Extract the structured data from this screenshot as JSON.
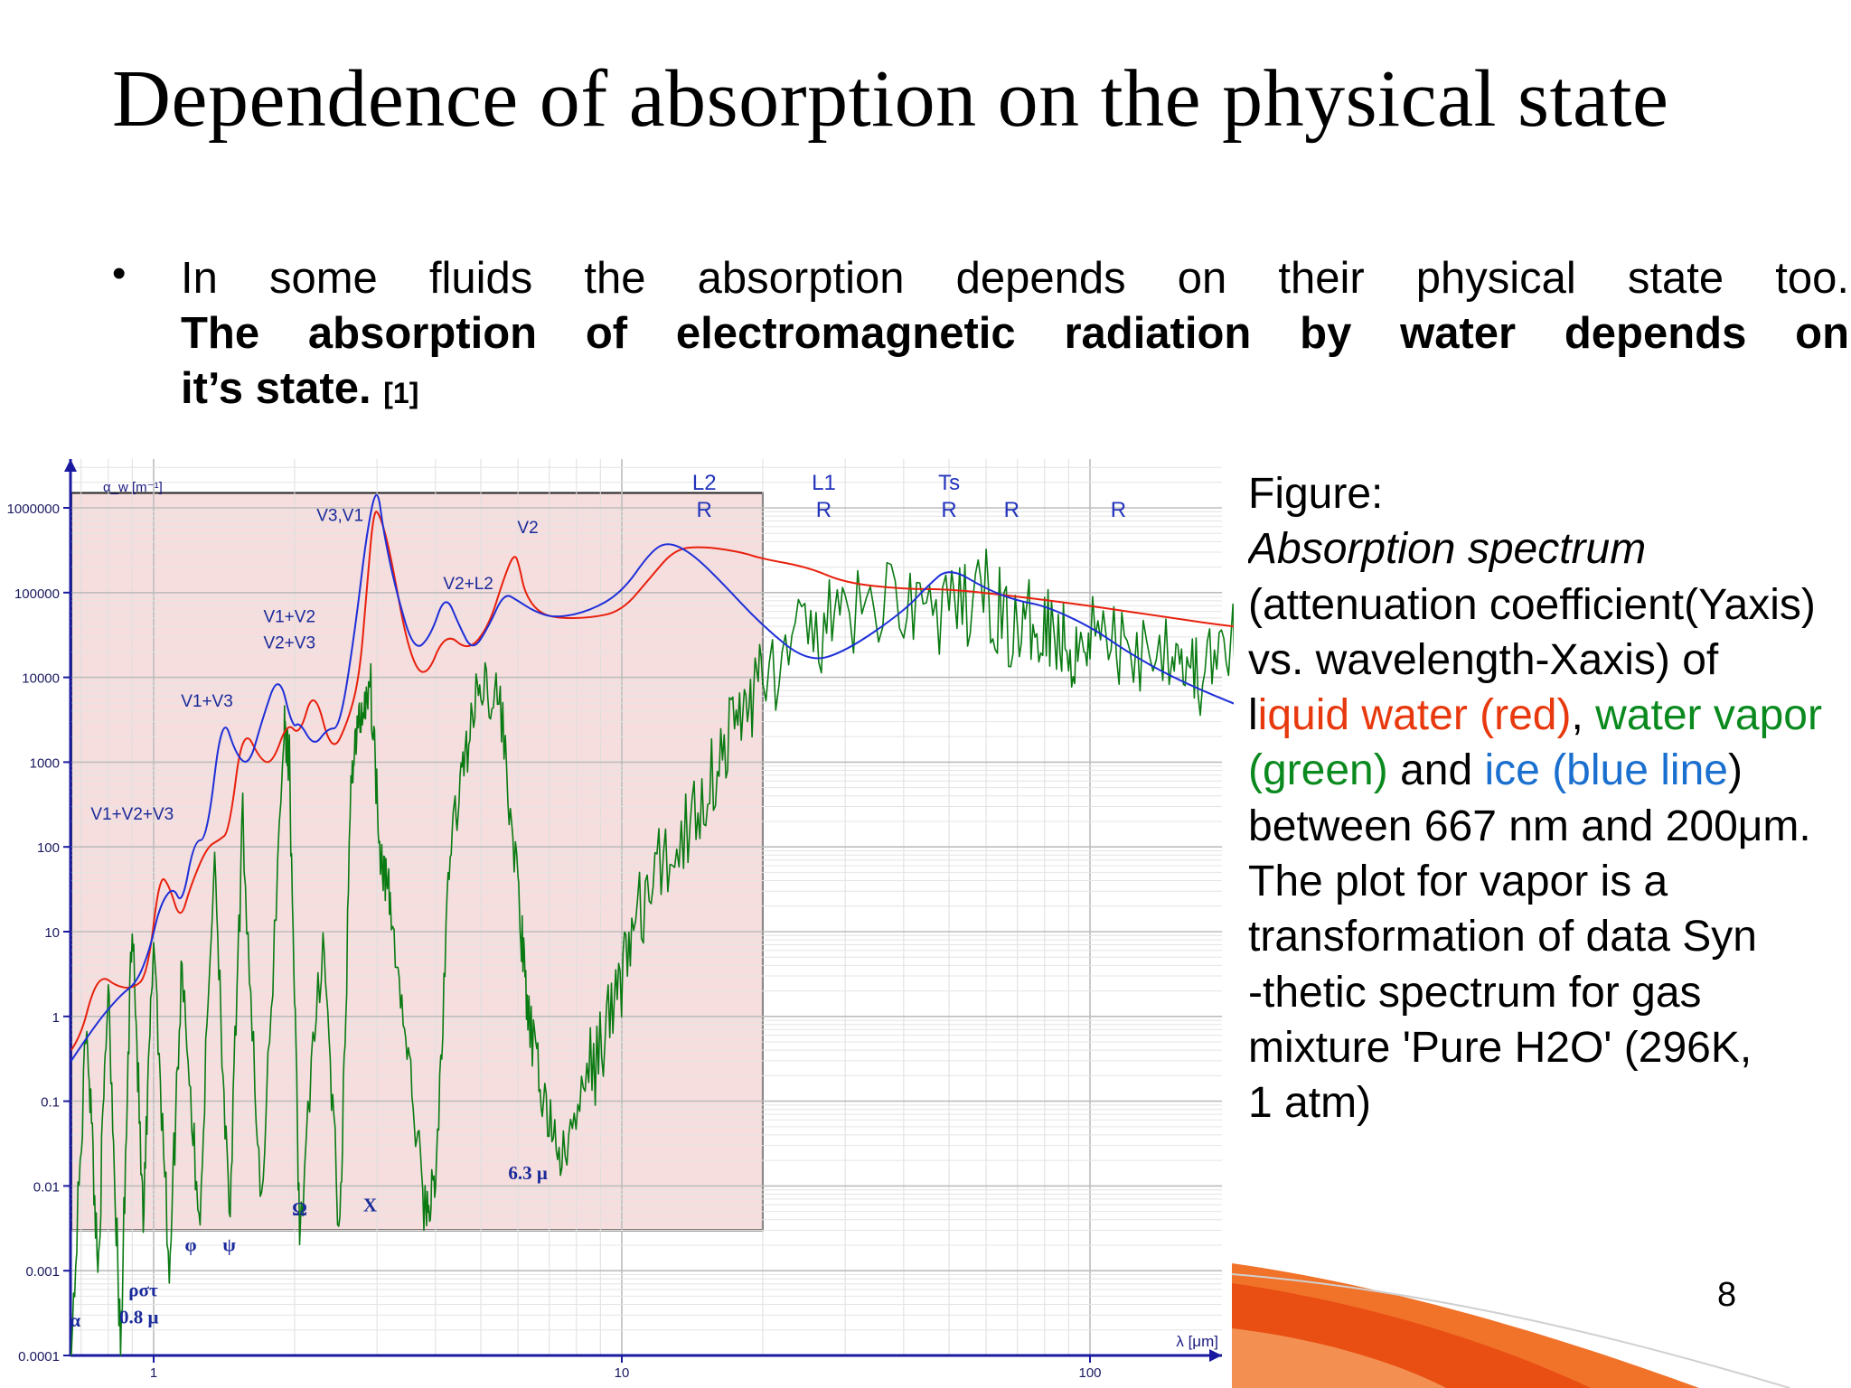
{
  "slide": {
    "title": "Dependence of absorption on the physical state",
    "bullet": {
      "line1": "In some fluids the absorption depends on their physical state too.",
      "line2": "The absorption of electromagnetic radiation by water depends on",
      "line3": "it’s state.",
      "citation": "[1]"
    },
    "page_number": "8"
  },
  "caption": {
    "line1": "Figure:",
    "line2": "Absorption spectrum",
    "line3": "(attenuation coefficient(Yaxis)",
    "line4_a": "vs. wavelength-Xaxis) of",
    "line5_a": "l",
    "line5_b": "iquid water (red)",
    "line5_c": ", ",
    "line5_d": "water vapor",
    "line6_a": "(green)",
    "line6_b": " and ",
    "line6_c": "ice (blue line",
    "line6_d": ")",
    "line7": "between 667 nm and 200μm.",
    "line8": "The plot for vapor is a",
    "line9": "transformation of data Syn",
    "line10": "-thetic spectrum for gas",
    "line11": "mixture 'Pure H2O' (296K,",
    "line12": "1 atm)"
  },
  "colors": {
    "liquid": "#e8200d",
    "vapor": "#0a7a12",
    "ice": "#1e2fd8",
    "red_text": "#e8380d",
    "green_text": "#0a8a1e",
    "blue_text": "#1a6fcf",
    "highlight": "#f6dede",
    "accent_orange": "#f06a1e"
  },
  "chart_data": {
    "type": "line",
    "x_scale": "log",
    "y_scale": "log",
    "xlim": [
      0.6,
      300
    ],
    "ylim": [
      0.0001,
      10000000
    ],
    "xlabel": "λ [μm]",
    "ylabel": "α_w [m⁻¹]",
    "x_ticks": [
      "1",
      "10",
      "100"
    ],
    "y_ticks": [
      "0.0001",
      "0.001",
      "0.01",
      "0.1",
      "1",
      "10",
      "100",
      "1000",
      "10000",
      "100000",
      "1000000"
    ],
    "highlight_box": {
      "x": [
        0.667,
        20
      ],
      "y": [
        0.003,
        1500000
      ]
    },
    "series": [
      {
        "key": "liquid",
        "x": [
          0.667,
          0.7,
          0.74,
          0.78,
          0.83,
          0.9,
          0.97,
          1.03,
          1.08,
          1.14,
          1.2,
          1.3,
          1.38,
          1.45,
          1.55,
          1.7,
          1.8,
          1.93,
          2.05,
          2.2,
          2.4,
          2.6,
          2.75,
          2.85,
          2.95,
          3.05,
          3.2,
          3.5,
          3.8,
          4.2,
          4.7,
          5.2,
          5.6,
          5.9,
          6.05,
          6.2,
          6.6,
          7.2,
          8.5,
          10,
          11.5,
          13,
          15,
          18,
          20,
          25,
          30,
          40,
          50,
          70,
          100,
          150,
          200,
          250
        ],
        "y": [
          0.4,
          0.6,
          2,
          3,
          2.3,
          2.1,
          3,
          48,
          35,
          13,
          35,
          100,
          120,
          150,
          2800,
          1000,
          1000,
          3000,
          2000,
          8000,
          1200,
          3000,
          10000,
          100000,
          1000000,
          800000,
          300000,
          20000,
          9000,
          35000,
          20000,
          40000,
          150000,
          300000,
          200000,
          100000,
          60000,
          50000,
          50000,
          60000,
          150000,
          330000,
          350000,
          300000,
          250000,
          200000,
          130000,
          110000,
          110000,
          90000,
          70000,
          50000,
          40000,
          35000
        ]
      },
      {
        "key": "ice",
        "x": [
          0.667,
          0.75,
          0.85,
          0.92,
          0.98,
          1.03,
          1.1,
          1.15,
          1.22,
          1.3,
          1.4,
          1.5,
          1.6,
          1.7,
          1.85,
          1.98,
          2.05,
          2.2,
          2.35,
          2.5,
          2.7,
          2.85,
          3.0,
          3.1,
          3.3,
          3.6,
          3.9,
          4.2,
          4.5,
          4.8,
          5.2,
          5.6,
          6.0,
          6.5,
          7.2,
          8.5,
          10,
          11.5,
          12.5,
          14,
          16,
          20,
          25,
          30,
          40,
          45,
          50,
          60,
          70,
          80,
          100,
          120,
          150,
          200,
          280
        ],
        "y": [
          0.3,
          0.8,
          1.8,
          2.5,
          6,
          20,
          35,
          20,
          120,
          120,
          4000,
          1200,
          900,
          3000,
          12000,
          2500,
          3000,
          1500,
          2500,
          2500,
          40000,
          500000,
          2000000,
          500000,
          100000,
          20000,
          30000,
          100000,
          40000,
          20000,
          40000,
          100000,
          80000,
          60000,
          50000,
          60000,
          100000,
          300000,
          400000,
          300000,
          150000,
          40000,
          15000,
          20000,
          60000,
          120000,
          200000,
          110000,
          80000,
          70000,
          40000,
          20000,
          10000,
          5000,
          2500
        ]
      },
      {
        "key": "vapor",
        "x": [
          0.667,
          0.72,
          0.76,
          0.8,
          0.85,
          0.9,
          0.95,
          1.0,
          1.08,
          1.15,
          1.25,
          1.35,
          1.45,
          1.55,
          1.7,
          1.9,
          1.95,
          2.05,
          2.3,
          2.5,
          2.65,
          2.75,
          2.9,
          3.05,
          3.2,
          3.5,
          3.8,
          4.0,
          4.3,
          4.6,
          5.0,
          5.5,
          6.0,
          6.3,
          6.8,
          7.5,
          8.5,
          9.5,
          10.5,
          12,
          14,
          16,
          18,
          20,
          25,
          30,
          40,
          50,
          60,
          70,
          80,
          90,
          100,
          120,
          150,
          170,
          200,
          230,
          260,
          280
        ],
        "y": [
          0.0001,
          1,
          0.001,
          3,
          0.0001,
          20,
          0.003,
          10,
          0.001,
          5,
          0.003,
          100,
          0.003,
          200,
          0.004,
          3000,
          1000,
          0.003,
          10,
          0.002,
          1000,
          3000,
          10000,
          100,
          20,
          0.3,
          0.005,
          0.01,
          100,
          1000,
          10000,
          5000,
          30,
          1,
          0.1,
          0.02,
          0.2,
          1,
          10,
          50,
          200,
          1000,
          4000,
          10000,
          30000,
          50000,
          100000,
          50000,
          100000,
          30000,
          60000,
          20000,
          40000,
          20000,
          30000,
          10000,
          20000,
          50000,
          5000,
          2000
        ]
      }
    ],
    "annotations": {
      "top": [
        {
          "text": "L2",
          "x": 15
        },
        {
          "text": "R",
          "x": 15
        },
        {
          "text": "L1",
          "x": 27
        },
        {
          "text": "R",
          "x": 27
        },
        {
          "text": "Ts",
          "x": 50
        },
        {
          "text": "R",
          "x": 50
        },
        {
          "text": "R",
          "x": 68
        },
        {
          "text": "R",
          "x": 115
        }
      ],
      "bands": [
        {
          "text": "V3,V1",
          "x": 2.5,
          "y": 700000
        },
        {
          "text": "V2",
          "x": 6.3,
          "y": 500000
        },
        {
          "text": "V2+L2",
          "x": 4.7,
          "y": 110000
        },
        {
          "text": "V1+V2",
          "x": 1.95,
          "y": 45000
        },
        {
          "text": "V2+V3",
          "x": 1.95,
          "y": 22000
        },
        {
          "text": "V1+V3",
          "x": 1.3,
          "y": 4500
        },
        {
          "text": "V1+V2+V3",
          "x": 0.9,
          "y": 210
        }
      ],
      "greek": [
        {
          "text": "6.3 μ",
          "x": 6.3,
          "y": 0.012
        },
        {
          "text": "Ω",
          "x": 2.05,
          "y": 0.0045
        },
        {
          "text": "X",
          "x": 2.9,
          "y": 0.005
        },
        {
          "text": "φ",
          "x": 1.2,
          "y": 0.0017
        },
        {
          "text": "ψ",
          "x": 1.45,
          "y": 0.0017
        },
        {
          "text": "ρστ",
          "x": 0.95,
          "y": 0.0005
        },
        {
          "text": "α",
          "x": 0.68,
          "y": 0.00022
        },
        {
          "text": "0.8 μ",
          "x": 0.93,
          "y": 0.00024
        }
      ]
    }
  }
}
